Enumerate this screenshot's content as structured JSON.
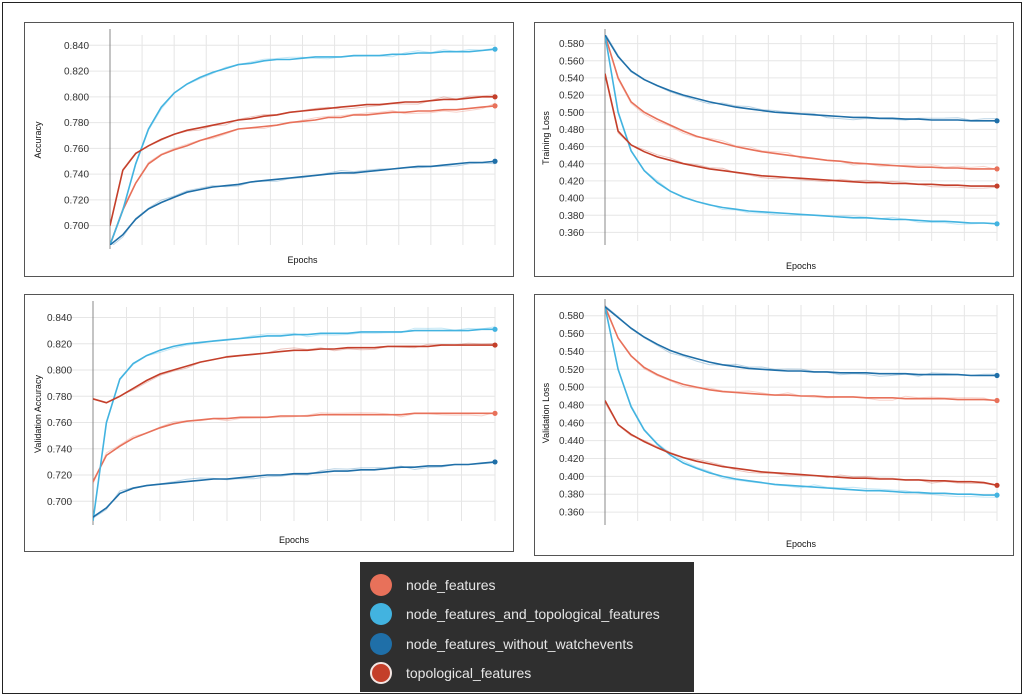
{
  "legend": {
    "items": [
      {
        "label": "node_features",
        "color": "#e8715a",
        "ring": false
      },
      {
        "label": "node_features_and_topological_features",
        "color": "#42b3e0",
        "ring": false
      },
      {
        "label": "node_features_without_watchevents",
        "color": "#1f6fa8",
        "ring": false
      },
      {
        "label": "topological_features",
        "color": "#c43f2a",
        "ring": true
      }
    ]
  },
  "chart_data": [
    {
      "type": "line",
      "xlabel": "Epochs",
      "ylabel": "Accuracy",
      "yticks": [
        "0.700",
        "0.720",
        "0.740",
        "0.760",
        "0.780",
        "0.800",
        "0.820",
        "0.840"
      ],
      "ylim": [
        0.685,
        0.848
      ],
      "grid": true,
      "series": [
        {
          "name": "node_features",
          "color": "#e8715a",
          "values": [
            0.685,
            0.712,
            0.733,
            0.748,
            0.755,
            0.759,
            0.762,
            0.766,
            0.769,
            0.772,
            0.775,
            0.776,
            0.777,
            0.778,
            0.78,
            0.781,
            0.782,
            0.784,
            0.784,
            0.786,
            0.786,
            0.787,
            0.788,
            0.788,
            0.789,
            0.789,
            0.79,
            0.79,
            0.791,
            0.792,
            0.793
          ]
        },
        {
          "name": "node_features_and_topological_features",
          "color": "#42b3e0",
          "values": [
            0.685,
            0.712,
            0.748,
            0.775,
            0.792,
            0.803,
            0.81,
            0.815,
            0.819,
            0.822,
            0.825,
            0.826,
            0.828,
            0.829,
            0.829,
            0.83,
            0.831,
            0.831,
            0.831,
            0.832,
            0.832,
            0.832,
            0.833,
            0.833,
            0.834,
            0.834,
            0.835,
            0.835,
            0.835,
            0.836,
            0.837
          ]
        },
        {
          "name": "node_features_without_watchevents",
          "color": "#1f6fa8",
          "values": [
            0.685,
            0.693,
            0.705,
            0.713,
            0.718,
            0.722,
            0.726,
            0.728,
            0.73,
            0.731,
            0.732,
            0.734,
            0.735,
            0.736,
            0.737,
            0.738,
            0.739,
            0.74,
            0.741,
            0.741,
            0.742,
            0.743,
            0.744,
            0.745,
            0.746,
            0.746,
            0.747,
            0.748,
            0.749,
            0.749,
            0.75
          ]
        },
        {
          "name": "topological_features",
          "color": "#c43f2a",
          "values": [
            0.7,
            0.743,
            0.756,
            0.762,
            0.767,
            0.771,
            0.774,
            0.776,
            0.778,
            0.78,
            0.782,
            0.783,
            0.785,
            0.786,
            0.788,
            0.789,
            0.79,
            0.791,
            0.792,
            0.793,
            0.794,
            0.794,
            0.795,
            0.796,
            0.796,
            0.797,
            0.798,
            0.798,
            0.799,
            0.8,
            0.8
          ]
        }
      ]
    },
    {
      "type": "line",
      "xlabel": "Epochs",
      "ylabel": "Training Loss",
      "yticks": [
        "0.360",
        "0.380",
        "0.400",
        "0.420",
        "0.440",
        "0.460",
        "0.480",
        "0.500",
        "0.520",
        "0.540",
        "0.560",
        "0.580"
      ],
      "ylim": [
        0.35,
        0.59
      ],
      "grid": true,
      "series": [
        {
          "name": "node_features",
          "color": "#e8715a",
          "values": [
            0.59,
            0.54,
            0.512,
            0.5,
            0.492,
            0.485,
            0.478,
            0.472,
            0.468,
            0.464,
            0.46,
            0.457,
            0.454,
            0.452,
            0.45,
            0.448,
            0.446,
            0.444,
            0.443,
            0.441,
            0.44,
            0.439,
            0.438,
            0.437,
            0.436,
            0.436,
            0.435,
            0.435,
            0.434,
            0.434,
            0.434
          ]
        },
        {
          "name": "node_features_and_topological_features",
          "color": "#42b3e0",
          "values": [
            0.59,
            0.5,
            0.455,
            0.432,
            0.418,
            0.408,
            0.401,
            0.396,
            0.392,
            0.389,
            0.387,
            0.385,
            0.384,
            0.383,
            0.382,
            0.381,
            0.38,
            0.379,
            0.378,
            0.377,
            0.377,
            0.376,
            0.375,
            0.375,
            0.374,
            0.373,
            0.373,
            0.372,
            0.371,
            0.371,
            0.37
          ]
        },
        {
          "name": "node_features_without_watchevents",
          "color": "#1f6fa8",
          "values": [
            0.59,
            0.565,
            0.548,
            0.538,
            0.531,
            0.525,
            0.52,
            0.516,
            0.512,
            0.509,
            0.506,
            0.504,
            0.502,
            0.5,
            0.499,
            0.498,
            0.497,
            0.496,
            0.495,
            0.494,
            0.494,
            0.493,
            0.493,
            0.492,
            0.492,
            0.491,
            0.491,
            0.491,
            0.49,
            0.49,
            0.49
          ]
        },
        {
          "name": "topological_features",
          "color": "#c43f2a",
          "values": [
            0.545,
            0.478,
            0.462,
            0.454,
            0.448,
            0.444,
            0.44,
            0.437,
            0.434,
            0.432,
            0.43,
            0.428,
            0.426,
            0.425,
            0.424,
            0.423,
            0.422,
            0.421,
            0.42,
            0.419,
            0.418,
            0.418,
            0.417,
            0.417,
            0.416,
            0.416,
            0.415,
            0.415,
            0.414,
            0.414,
            0.414
          ]
        }
      ]
    },
    {
      "type": "line",
      "xlabel": "Epochs",
      "ylabel": "Validation Accuracy",
      "yticks": [
        "0.700",
        "0.720",
        "0.740",
        "0.760",
        "0.780",
        "0.800",
        "0.820",
        "0.840"
      ],
      "ylim": [
        0.685,
        0.848
      ],
      "grid": true,
      "series": [
        {
          "name": "node_features",
          "color": "#e8715a",
          "values": [
            0.715,
            0.735,
            0.742,
            0.748,
            0.752,
            0.756,
            0.759,
            0.761,
            0.762,
            0.763,
            0.763,
            0.764,
            0.764,
            0.764,
            0.765,
            0.765,
            0.765,
            0.766,
            0.766,
            0.766,
            0.766,
            0.766,
            0.766,
            0.766,
            0.767,
            0.767,
            0.767,
            0.767,
            0.767,
            0.767,
            0.767
          ]
        },
        {
          "name": "node_features_and_topological_features",
          "color": "#42b3e0",
          "values": [
            0.685,
            0.76,
            0.793,
            0.805,
            0.811,
            0.815,
            0.818,
            0.82,
            0.821,
            0.822,
            0.823,
            0.824,
            0.825,
            0.826,
            0.826,
            0.827,
            0.827,
            0.828,
            0.828,
            0.828,
            0.829,
            0.829,
            0.829,
            0.829,
            0.83,
            0.83,
            0.83,
            0.83,
            0.83,
            0.831,
            0.831
          ]
        },
        {
          "name": "node_features_without_watchevents",
          "color": "#1f6fa8",
          "values": [
            0.688,
            0.695,
            0.706,
            0.71,
            0.712,
            0.713,
            0.714,
            0.715,
            0.716,
            0.717,
            0.717,
            0.718,
            0.719,
            0.72,
            0.72,
            0.721,
            0.721,
            0.722,
            0.723,
            0.723,
            0.724,
            0.724,
            0.725,
            0.726,
            0.726,
            0.727,
            0.727,
            0.728,
            0.728,
            0.729,
            0.73
          ]
        },
        {
          "name": "topological_features",
          "color": "#c43f2a",
          "values": [
            0.778,
            0.775,
            0.78,
            0.786,
            0.792,
            0.797,
            0.8,
            0.803,
            0.806,
            0.808,
            0.81,
            0.811,
            0.812,
            0.813,
            0.814,
            0.815,
            0.815,
            0.816,
            0.816,
            0.817,
            0.817,
            0.817,
            0.818,
            0.818,
            0.818,
            0.818,
            0.819,
            0.819,
            0.819,
            0.819,
            0.819
          ]
        }
      ]
    },
    {
      "type": "line",
      "xlabel": "Epochs",
      "ylabel": "Validation Loss",
      "yticks": [
        "0.360",
        "0.380",
        "0.400",
        "0.420",
        "0.440",
        "0.460",
        "0.480",
        "0.500",
        "0.520",
        "0.540",
        "0.560",
        "0.580"
      ],
      "ylim": [
        0.35,
        0.592
      ],
      "grid": true,
      "series": [
        {
          "name": "node_features",
          "color": "#e8715a",
          "values": [
            0.59,
            0.555,
            0.535,
            0.522,
            0.514,
            0.508,
            0.503,
            0.5,
            0.497,
            0.495,
            0.494,
            0.493,
            0.492,
            0.491,
            0.491,
            0.49,
            0.49,
            0.489,
            0.489,
            0.489,
            0.488,
            0.488,
            0.488,
            0.487,
            0.487,
            0.487,
            0.487,
            0.486,
            0.486,
            0.486,
            0.485
          ]
        },
        {
          "name": "node_features_and_topological_features",
          "color": "#42b3e0",
          "values": [
            0.59,
            0.52,
            0.478,
            0.452,
            0.436,
            0.424,
            0.415,
            0.409,
            0.404,
            0.4,
            0.397,
            0.395,
            0.393,
            0.391,
            0.39,
            0.389,
            0.388,
            0.387,
            0.386,
            0.385,
            0.384,
            0.384,
            0.383,
            0.382,
            0.382,
            0.381,
            0.381,
            0.38,
            0.38,
            0.379,
            0.379
          ]
        },
        {
          "name": "node_features_without_watchevents",
          "color": "#1f6fa8",
          "values": [
            0.59,
            0.578,
            0.566,
            0.556,
            0.548,
            0.541,
            0.536,
            0.532,
            0.528,
            0.525,
            0.523,
            0.521,
            0.52,
            0.519,
            0.518,
            0.518,
            0.517,
            0.517,
            0.516,
            0.516,
            0.516,
            0.515,
            0.515,
            0.515,
            0.514,
            0.514,
            0.514,
            0.514,
            0.513,
            0.513,
            0.513
          ]
        },
        {
          "name": "topological_features",
          "color": "#c43f2a",
          "values": [
            0.485,
            0.458,
            0.447,
            0.439,
            0.432,
            0.426,
            0.421,
            0.417,
            0.414,
            0.411,
            0.409,
            0.407,
            0.405,
            0.404,
            0.403,
            0.402,
            0.401,
            0.4,
            0.399,
            0.398,
            0.398,
            0.397,
            0.397,
            0.396,
            0.396,
            0.395,
            0.395,
            0.394,
            0.394,
            0.393,
            0.39
          ]
        }
      ]
    }
  ]
}
